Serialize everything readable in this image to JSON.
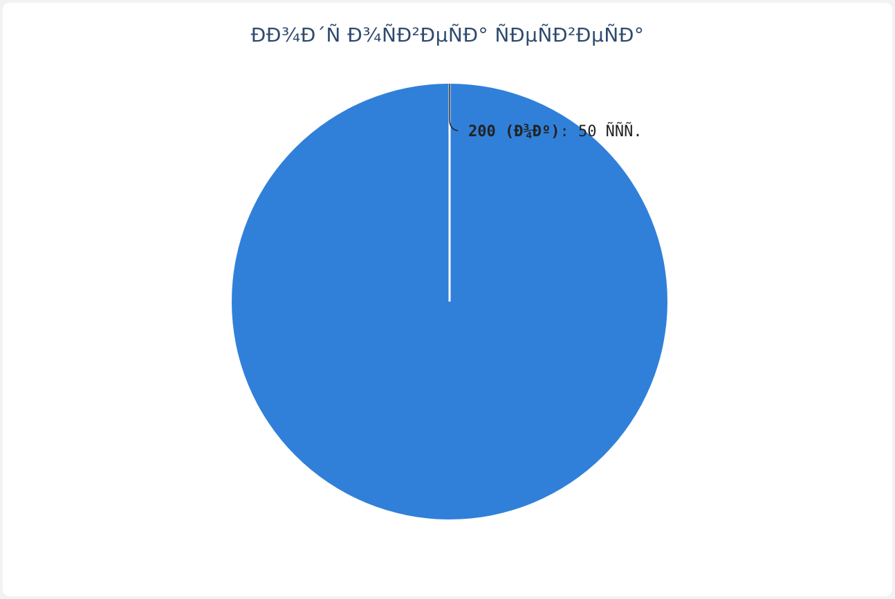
{
  "chart_data": {
    "type": "pie",
    "title": "ÐÐ¾Ð´Ñ Ð¾ÑÐ²ÐµÑÐ° ÑÐµÑÐ²ÐµÑÐ°",
    "slices": [
      {
        "label": "200 (Ð¾Ðº)",
        "value": 50,
        "value_text": ": 50 ÑÑÑ.",
        "color": "#3080d9"
      }
    ],
    "legend": "none"
  },
  "colors": {
    "background": "#ffffff",
    "title": "#2e4a6e",
    "slice_border": "#ffffff",
    "leader_line": "#222222"
  }
}
